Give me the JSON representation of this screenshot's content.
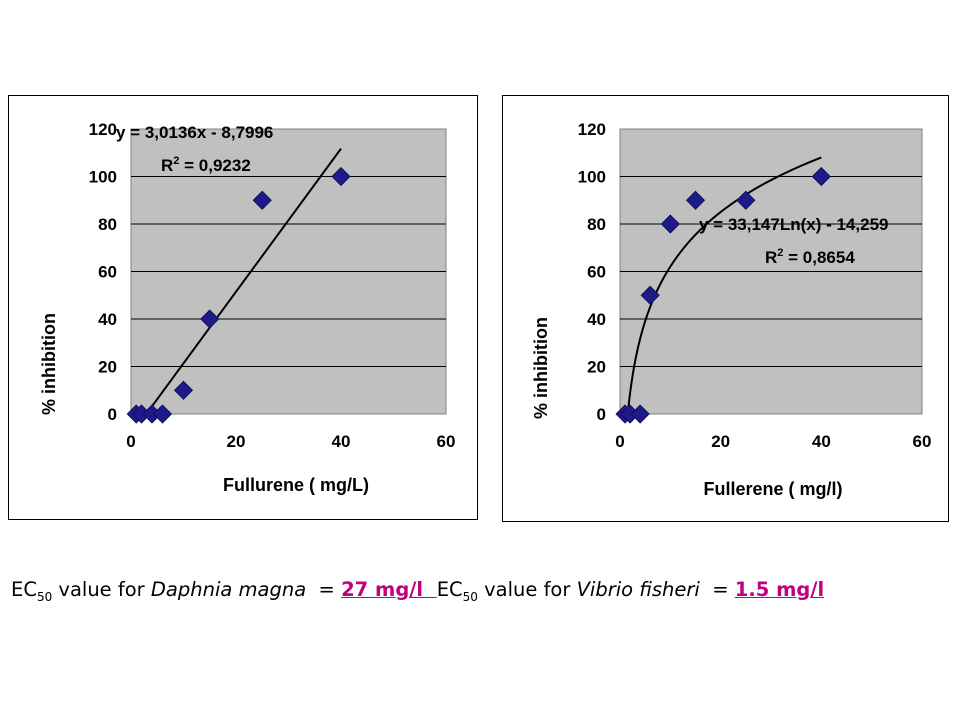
{
  "chart_data": [
    {
      "type": "scatter",
      "xlabel": "Fullurene ( mg/L)",
      "ylabel": "% inhibition",
      "xlim": [
        0,
        60
      ],
      "ylim": [
        0,
        120
      ],
      "x_ticks": [
        "0",
        "20",
        "40",
        "60"
      ],
      "y_ticks": [
        "0",
        "20",
        "40",
        "60",
        "80",
        "100",
        "120"
      ],
      "grid": "horizontal",
      "plot_area_color": "#c0c0c0",
      "marker_color": "#1f1a8c",
      "series": [
        {
          "x": [
            1,
            2,
            4,
            6,
            10,
            15,
            25,
            40
          ],
          "y": [
            0,
            0,
            0,
            0,
            10,
            40,
            90,
            100
          ]
        }
      ],
      "trendline": {
        "kind": "linear",
        "slope": 3.0136,
        "intercept": -8.7996,
        "x_range": [
          3,
          40
        ],
        "equation": "y = 3,0136x - 8,7996",
        "r2_label": "R",
        "r2_sup": "2",
        "r2_value": " = 0,9232"
      }
    },
    {
      "type": "scatter",
      "xlabel": "Fullerene ( mg/l)",
      "ylabel": "% inhibition",
      "xlim": [
        0,
        60
      ],
      "ylim": [
        0,
        120
      ],
      "x_ticks": [
        "0",
        "20",
        "40",
        "60"
      ],
      "y_ticks": [
        "0",
        "20",
        "40",
        "60",
        "80",
        "100",
        "120"
      ],
      "grid": "horizontal",
      "plot_area_color": "#c0c0c0",
      "marker_color": "#1f1a8c",
      "series": [
        {
          "x": [
            1,
            2,
            4,
            6,
            10,
            15,
            25,
            40
          ],
          "y": [
            0,
            0,
            0,
            50,
            80,
            90,
            90,
            100
          ]
        }
      ],
      "trendline": {
        "kind": "log",
        "a": 33.147,
        "b": -14.259,
        "x_range": [
          1.54,
          40
        ],
        "equation": "y = 33,147Ln(x) - 14,259",
        "r2_label": "R",
        "r2_sup": "2",
        "r2_value": " = 0,8654"
      }
    }
  ],
  "caption": {
    "left": {
      "prefix": "EC",
      "sub": "50",
      "middle": " value for ",
      "species": "Daphnia magna",
      "equals": "  = ",
      "value": "27 mg/l  "
    },
    "right": {
      "prefix": "EC",
      "sub": "50",
      "middle": " value for ",
      "species": "Vibrio fisheri",
      "equals": "  = ",
      "value": "1.5 mg/l"
    }
  }
}
